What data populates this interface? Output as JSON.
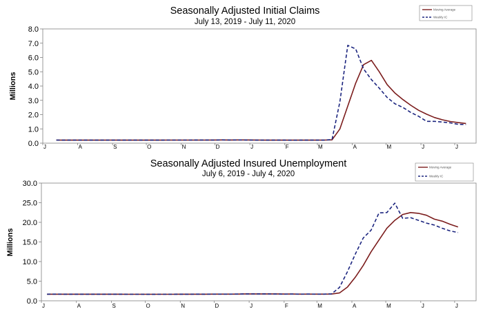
{
  "chart_data": [
    {
      "type": "line",
      "title": "Seasonally Adjusted Initial Claims",
      "subtitle": "July 13, 2019 - July 11, 2020",
      "ylabel": "Millions",
      "ylim": [
        0,
        8
      ],
      "yticks": [
        "0.0",
        "1.0",
        "2.0",
        "3.0",
        "4.0",
        "5.0",
        "6.0",
        "7.0",
        "8.0"
      ],
      "month_labels": [
        "J",
        "A",
        "S",
        "O",
        "N",
        "D",
        "J",
        "F",
        "M",
        "A",
        "M",
        "J",
        "J"
      ],
      "grid": false,
      "legend_position": "top-right",
      "x": [
        "2019-07-13",
        "2019-07-20",
        "2019-07-27",
        "2019-08-03",
        "2019-08-10",
        "2019-08-17",
        "2019-08-24",
        "2019-08-31",
        "2019-09-07",
        "2019-09-14",
        "2019-09-21",
        "2019-09-28",
        "2019-10-05",
        "2019-10-12",
        "2019-10-19",
        "2019-10-26",
        "2019-11-02",
        "2019-11-09",
        "2019-11-16",
        "2019-11-23",
        "2019-11-30",
        "2019-12-07",
        "2019-12-14",
        "2019-12-21",
        "2019-12-28",
        "2020-01-04",
        "2020-01-11",
        "2020-01-18",
        "2020-01-25",
        "2020-02-01",
        "2020-02-08",
        "2020-02-15",
        "2020-02-22",
        "2020-02-29",
        "2020-03-07",
        "2020-03-14",
        "2020-03-21",
        "2020-03-28",
        "2020-04-04",
        "2020-04-11",
        "2020-04-18",
        "2020-04-25",
        "2020-05-02",
        "2020-05-09",
        "2020-05-16",
        "2020-05-23",
        "2020-05-30",
        "2020-06-06",
        "2020-06-13",
        "2020-06-20",
        "2020-06-27",
        "2020-07-04",
        "2020-07-11"
      ],
      "series": [
        {
          "name": "Moving Average",
          "color": "#7b1c1c",
          "dash": "solid",
          "values": [
            0.216,
            0.214,
            0.213,
            0.213,
            0.212,
            0.214,
            0.214,
            0.215,
            0.214,
            0.213,
            0.212,
            0.213,
            0.212,
            0.214,
            0.215,
            0.215,
            0.217,
            0.217,
            0.219,
            0.219,
            0.221,
            0.226,
            0.224,
            0.226,
            0.225,
            0.221,
            0.216,
            0.214,
            0.212,
            0.212,
            0.21,
            0.211,
            0.213,
            0.213,
            0.215,
            0.232,
            1.0,
            2.6,
            4.2,
            5.5,
            5.8,
            5.0,
            4.1,
            3.5,
            3.05,
            2.65,
            2.3,
            2.03,
            1.8,
            1.64,
            1.52,
            1.44,
            1.38
          ]
        },
        {
          "name": "Weekly IC",
          "color": "#1a237e",
          "dash": "dashed",
          "values": [
            0.215,
            0.212,
            0.211,
            0.211,
            0.21,
            0.212,
            0.213,
            0.214,
            0.211,
            0.21,
            0.21,
            0.212,
            0.21,
            0.214,
            0.216,
            0.216,
            0.218,
            0.217,
            0.222,
            0.221,
            0.219,
            0.23,
            0.223,
            0.226,
            0.221,
            0.217,
            0.214,
            0.211,
            0.21,
            0.21,
            0.208,
            0.21,
            0.213,
            0.212,
            0.214,
            0.251,
            2.9,
            6.85,
            6.6,
            5.2,
            4.45,
            3.85,
            3.2,
            2.75,
            2.5,
            2.15,
            1.88,
            1.53,
            1.53,
            1.48,
            1.42,
            1.32,
            1.3
          ]
        }
      ]
    },
    {
      "type": "line",
      "title": "Seasonally Adjusted Insured Unemployment",
      "subtitle": "July 6, 2019 - July 4, 2020",
      "ylabel": "Millions",
      "ylim": [
        0,
        30
      ],
      "yticks": [
        "0.0",
        "5.0",
        "10.0",
        "15.0",
        "20.0",
        "25.0",
        "30.0"
      ],
      "month_labels": [
        "J",
        "A",
        "S",
        "O",
        "N",
        "D",
        "J",
        "F",
        "M",
        "A",
        "M",
        "J",
        "J"
      ],
      "grid": false,
      "legend_position": "top-right",
      "x": [
        "2019-07-06",
        "2019-07-13",
        "2019-07-20",
        "2019-07-27",
        "2019-08-03",
        "2019-08-10",
        "2019-08-17",
        "2019-08-24",
        "2019-08-31",
        "2019-09-07",
        "2019-09-14",
        "2019-09-21",
        "2019-09-28",
        "2019-10-05",
        "2019-10-12",
        "2019-10-19",
        "2019-10-26",
        "2019-11-02",
        "2019-11-09",
        "2019-11-16",
        "2019-11-23",
        "2019-11-30",
        "2019-12-07",
        "2019-12-14",
        "2019-12-21",
        "2019-12-28",
        "2020-01-04",
        "2020-01-11",
        "2020-01-18",
        "2020-01-25",
        "2020-02-01",
        "2020-02-08",
        "2020-02-15",
        "2020-02-22",
        "2020-02-29",
        "2020-03-07",
        "2020-03-14",
        "2020-03-21",
        "2020-03-28",
        "2020-04-04",
        "2020-04-11",
        "2020-04-18",
        "2020-04-25",
        "2020-05-02",
        "2020-05-09",
        "2020-05-16",
        "2020-05-23",
        "2020-05-30",
        "2020-06-06",
        "2020-06-13",
        "2020-06-20",
        "2020-06-27",
        "2020-07-04"
      ],
      "series": [
        {
          "name": "Moving Average",
          "color": "#7b1c1c",
          "dash": "solid",
          "values": [
            1.69,
            1.69,
            1.69,
            1.69,
            1.68,
            1.68,
            1.68,
            1.68,
            1.68,
            1.68,
            1.67,
            1.67,
            1.66,
            1.66,
            1.66,
            1.67,
            1.67,
            1.68,
            1.68,
            1.69,
            1.69,
            1.7,
            1.7,
            1.7,
            1.71,
            1.73,
            1.74,
            1.74,
            1.74,
            1.73,
            1.72,
            1.72,
            1.71,
            1.71,
            1.71,
            1.71,
            1.72,
            2.0,
            3.5,
            6.0,
            9.0,
            12.5,
            15.5,
            18.5,
            20.5,
            22.0,
            22.5,
            22.3,
            21.8,
            20.8,
            20.3,
            19.5,
            18.8
          ]
        },
        {
          "name": "Weekly IC",
          "color": "#1a237e",
          "dash": "dashed",
          "values": [
            1.69,
            1.7,
            1.69,
            1.69,
            1.68,
            1.67,
            1.68,
            1.67,
            1.68,
            1.69,
            1.66,
            1.67,
            1.66,
            1.65,
            1.67,
            1.66,
            1.67,
            1.69,
            1.67,
            1.7,
            1.69,
            1.71,
            1.7,
            1.7,
            1.72,
            1.74,
            1.76,
            1.73,
            1.74,
            1.72,
            1.71,
            1.72,
            1.7,
            1.72,
            1.7,
            1.7,
            1.78,
            3.4,
            7.4,
            11.9,
            16.0,
            18.0,
            22.4,
            22.5,
            24.9,
            21.0,
            21.2,
            20.5,
            19.8,
            19.3,
            18.5,
            17.8,
            17.4
          ]
        }
      ]
    }
  ]
}
